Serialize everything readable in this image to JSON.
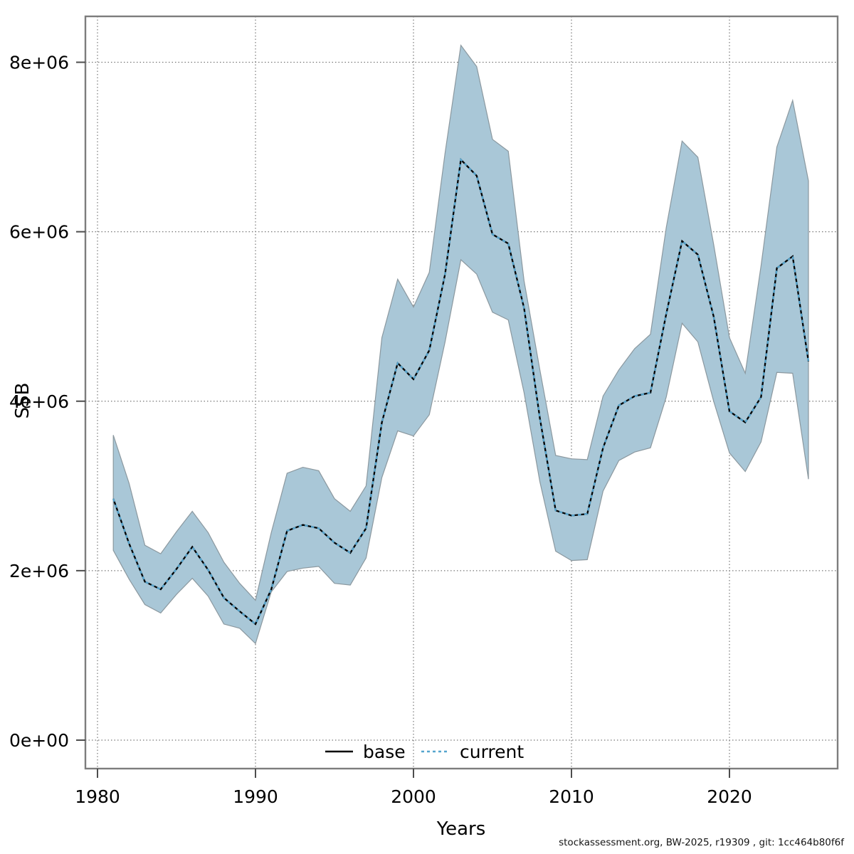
{
  "chart": {
    "footer": "stockassessment.org, BW-2025, r19309 , git: 1cc464b80f6f"
  },
  "chart_data": {
    "type": "area",
    "title": "",
    "xlabel": "Years",
    "ylabel": "SSB",
    "grid": "dotted gray lines at every axis tick",
    "legend_position": "bottom-center-inside",
    "xlim": [
      1979.2,
      2026.8
    ],
    "ylim": [
      -336000,
      8542000
    ],
    "x_ticks": [
      {
        "label": "1980",
        "value": 1980
      },
      {
        "label": "1990",
        "value": 1990
      },
      {
        "label": "2000",
        "value": 2000
      },
      {
        "label": "2010",
        "value": 2010
      },
      {
        "label": "2020",
        "value": 2020
      }
    ],
    "y_ticks": [
      {
        "label": "0e+00",
        "value": 0
      },
      {
        "label": "2e+06",
        "value": 2000000
      },
      {
        "label": "4e+06",
        "value": 4000000
      },
      {
        "label": "6e+06",
        "value": 6000000
      },
      {
        "label": "8e+06",
        "value": 8000000
      }
    ],
    "x": [
      1981,
      1982,
      1983,
      1984,
      1985,
      1986,
      1987,
      1988,
      1989,
      1990,
      1991,
      1992,
      1993,
      1994,
      1995,
      1996,
      1997,
      1998,
      1999,
      2000,
      2001,
      2002,
      2003,
      2004,
      2005,
      2006,
      2007,
      2008,
      2009,
      2010,
      2011,
      2012,
      2013,
      2014,
      2015,
      2016,
      2017,
      2018,
      2019,
      2020,
      2021,
      2022,
      2023,
      2024,
      2025
    ],
    "series": [
      {
        "name": "base",
        "line_style": "solid",
        "color": "#000000",
        "values": [
          2850000,
          2320000,
          1870000,
          1780000,
          2020000,
          2280000,
          2010000,
          1680000,
          1520000,
          1370000,
          1780000,
          2470000,
          2540000,
          2500000,
          2330000,
          2210000,
          2500000,
          3750000,
          4450000,
          4260000,
          4600000,
          5500000,
          6850000,
          6660000,
          5970000,
          5860000,
          5100000,
          3800000,
          2710000,
          2650000,
          2670000,
          3450000,
          3950000,
          4060000,
          4100000,
          5030000,
          5890000,
          5730000,
          5000000,
          3880000,
          3750000,
          4050000,
          5570000,
          5710000,
          4470000
        ]
      },
      {
        "name": "current",
        "line_style": "dotted",
        "color": "#56a5ce",
        "values": [
          2850000,
          2320000,
          1870000,
          1780000,
          2020000,
          2280000,
          2010000,
          1680000,
          1520000,
          1370000,
          1780000,
          2470000,
          2540000,
          2500000,
          2330000,
          2210000,
          2500000,
          3750000,
          4450000,
          4260000,
          4600000,
          5500000,
          6850000,
          6660000,
          5970000,
          5860000,
          5100000,
          3800000,
          2710000,
          2650000,
          2670000,
          3450000,
          3950000,
          4060000,
          4100000,
          5030000,
          5890000,
          5730000,
          5000000,
          3880000,
          3750000,
          4050000,
          5570000,
          5710000,
          4470000
        ]
      }
    ],
    "band": {
      "name": "confidence-interval",
      "fill": "#a9c7d7",
      "edge": "#8b989f",
      "upper": [
        3600000,
        3030000,
        2300000,
        2200000,
        2460000,
        2700000,
        2450000,
        2100000,
        1850000,
        1650000,
        2450000,
        3150000,
        3220000,
        3180000,
        2850000,
        2700000,
        3000000,
        4750000,
        5440000,
        5110000,
        5520000,
        6930000,
        8200000,
        7950000,
        7090000,
        6950000,
        5420000,
        4370000,
        3360000,
        3320000,
        3310000,
        4060000,
        4370000,
        4620000,
        4790000,
        6050000,
        7070000,
        6880000,
        5850000,
        4750000,
        4330000,
        5600000,
        7000000,
        7550000,
        6600000
      ],
      "lower": [
        2240000,
        1900000,
        1600000,
        1500000,
        1720000,
        1910000,
        1700000,
        1370000,
        1320000,
        1140000,
        1750000,
        1990000,
        2030000,
        2050000,
        1850000,
        1830000,
        2150000,
        3100000,
        3650000,
        3590000,
        3840000,
        4700000,
        5670000,
        5500000,
        5050000,
        4960000,
        4100000,
        3050000,
        2230000,
        2120000,
        2130000,
        2940000,
        3300000,
        3400000,
        3450000,
        4050000,
        4920000,
        4700000,
        4000000,
        3390000,
        3170000,
        3520000,
        4340000,
        4330000,
        3080000
      ]
    },
    "legend": [
      {
        "label": "base",
        "series": "base"
      },
      {
        "label": "current",
        "series": "current"
      }
    ]
  }
}
